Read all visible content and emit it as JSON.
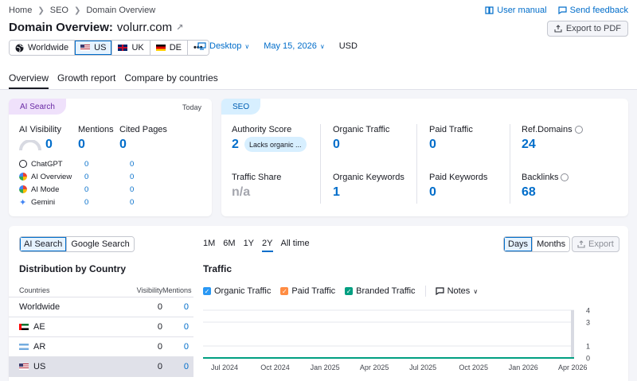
{
  "breadcrumb": [
    "Home",
    "SEO",
    "Domain Overview"
  ],
  "toplinks": {
    "manual": "User manual",
    "feedback": "Send feedback"
  },
  "title": {
    "label": "Domain Overview:",
    "domain": "volurr.com"
  },
  "export_pdf": "Export to PDF",
  "databases": [
    {
      "label": "Worldwide",
      "icon": "globe-icon"
    },
    {
      "label": "US",
      "flag": "us",
      "active": true
    },
    {
      "label": "UK",
      "flag": "uk"
    },
    {
      "label": "DE",
      "flag": "de"
    },
    {
      "label": "•••"
    }
  ],
  "filters": {
    "device": "Desktop",
    "date": "May 15, 2026",
    "currency": "USD"
  },
  "tabs": [
    "Overview",
    "Growth report",
    "Compare by countries"
  ],
  "ai_card": {
    "pill": "AI Search",
    "date": "Today",
    "headers": {
      "visibility": "AI Visibility",
      "mentions": "Mentions",
      "cited": "Cited Pages"
    },
    "totals": {
      "visibility": "0",
      "mentions": "0",
      "cited": "0"
    },
    "rows": [
      {
        "name": "ChatGPT",
        "mentions": "0",
        "cited": "0"
      },
      {
        "name": "AI Overview",
        "mentions": "0",
        "cited": "0"
      },
      {
        "name": "AI Mode",
        "mentions": "0",
        "cited": "0"
      },
      {
        "name": "Gemini",
        "mentions": "0",
        "cited": "0"
      }
    ]
  },
  "seo_card": {
    "pill": "SEO",
    "authority": {
      "label": "Authority Score",
      "value": "2",
      "badge": "Lacks organic ..."
    },
    "organic_traffic": {
      "label": "Organic Traffic",
      "value": "0"
    },
    "paid_traffic": {
      "label": "Paid Traffic",
      "value": "0"
    },
    "ref_domains": {
      "label": "Ref.Domains",
      "value": "24"
    },
    "traffic_share": {
      "label": "Traffic Share",
      "value": "n/a"
    },
    "organic_keywords": {
      "label": "Organic Keywords",
      "value": "1"
    },
    "paid_keywords": {
      "label": "Paid Keywords",
      "value": "0"
    },
    "backlinks": {
      "label": "Backlinks",
      "value": "68"
    }
  },
  "bottom": {
    "source_toggle": [
      "AI Search",
      "Google Search"
    ],
    "dist_title": "Distribution by Country",
    "table_headers": {
      "country": "Countries",
      "visibility": "Visibility",
      "mentions": "Mentions"
    },
    "countries": [
      {
        "name": "Worldwide",
        "visibility": "0",
        "mentions": "0"
      },
      {
        "name": "AE",
        "flag": "ae",
        "visibility": "0",
        "mentions": "0"
      },
      {
        "name": "AR",
        "flag": "ar",
        "visibility": "0",
        "mentions": "0"
      },
      {
        "name": "US",
        "flag": "us",
        "visibility": "0",
        "mentions": "0",
        "selected": true
      }
    ],
    "ranges": [
      "1M",
      "6M",
      "1Y",
      "2Y",
      "All time"
    ],
    "active_range": "2Y",
    "granularity": [
      "Days",
      "Months"
    ],
    "export": "Export",
    "traffic_title": "Traffic",
    "legend": [
      {
        "label": "Organic Traffic",
        "color": "#2a98f4"
      },
      {
        "label": "Paid Traffic",
        "color": "#ff8c43"
      },
      {
        "label": "Branded Traffic",
        "color": "#009f81"
      }
    ],
    "notes": "Notes"
  },
  "chart_data": {
    "type": "line",
    "x": [
      "Jul 2024",
      "Oct 2024",
      "Jan 2025",
      "Apr 2025",
      "Jul 2025",
      "Oct 2025",
      "Jan 2026",
      "Apr 2026"
    ],
    "y_ticks_right": [
      "4",
      "3",
      "1",
      "0"
    ],
    "ylim": [
      0,
      4
    ],
    "series": [
      {
        "name": "Branded Traffic",
        "values": [
          0,
          0,
          0,
          0,
          0,
          0,
          0,
          0
        ]
      }
    ],
    "grid": true
  }
}
